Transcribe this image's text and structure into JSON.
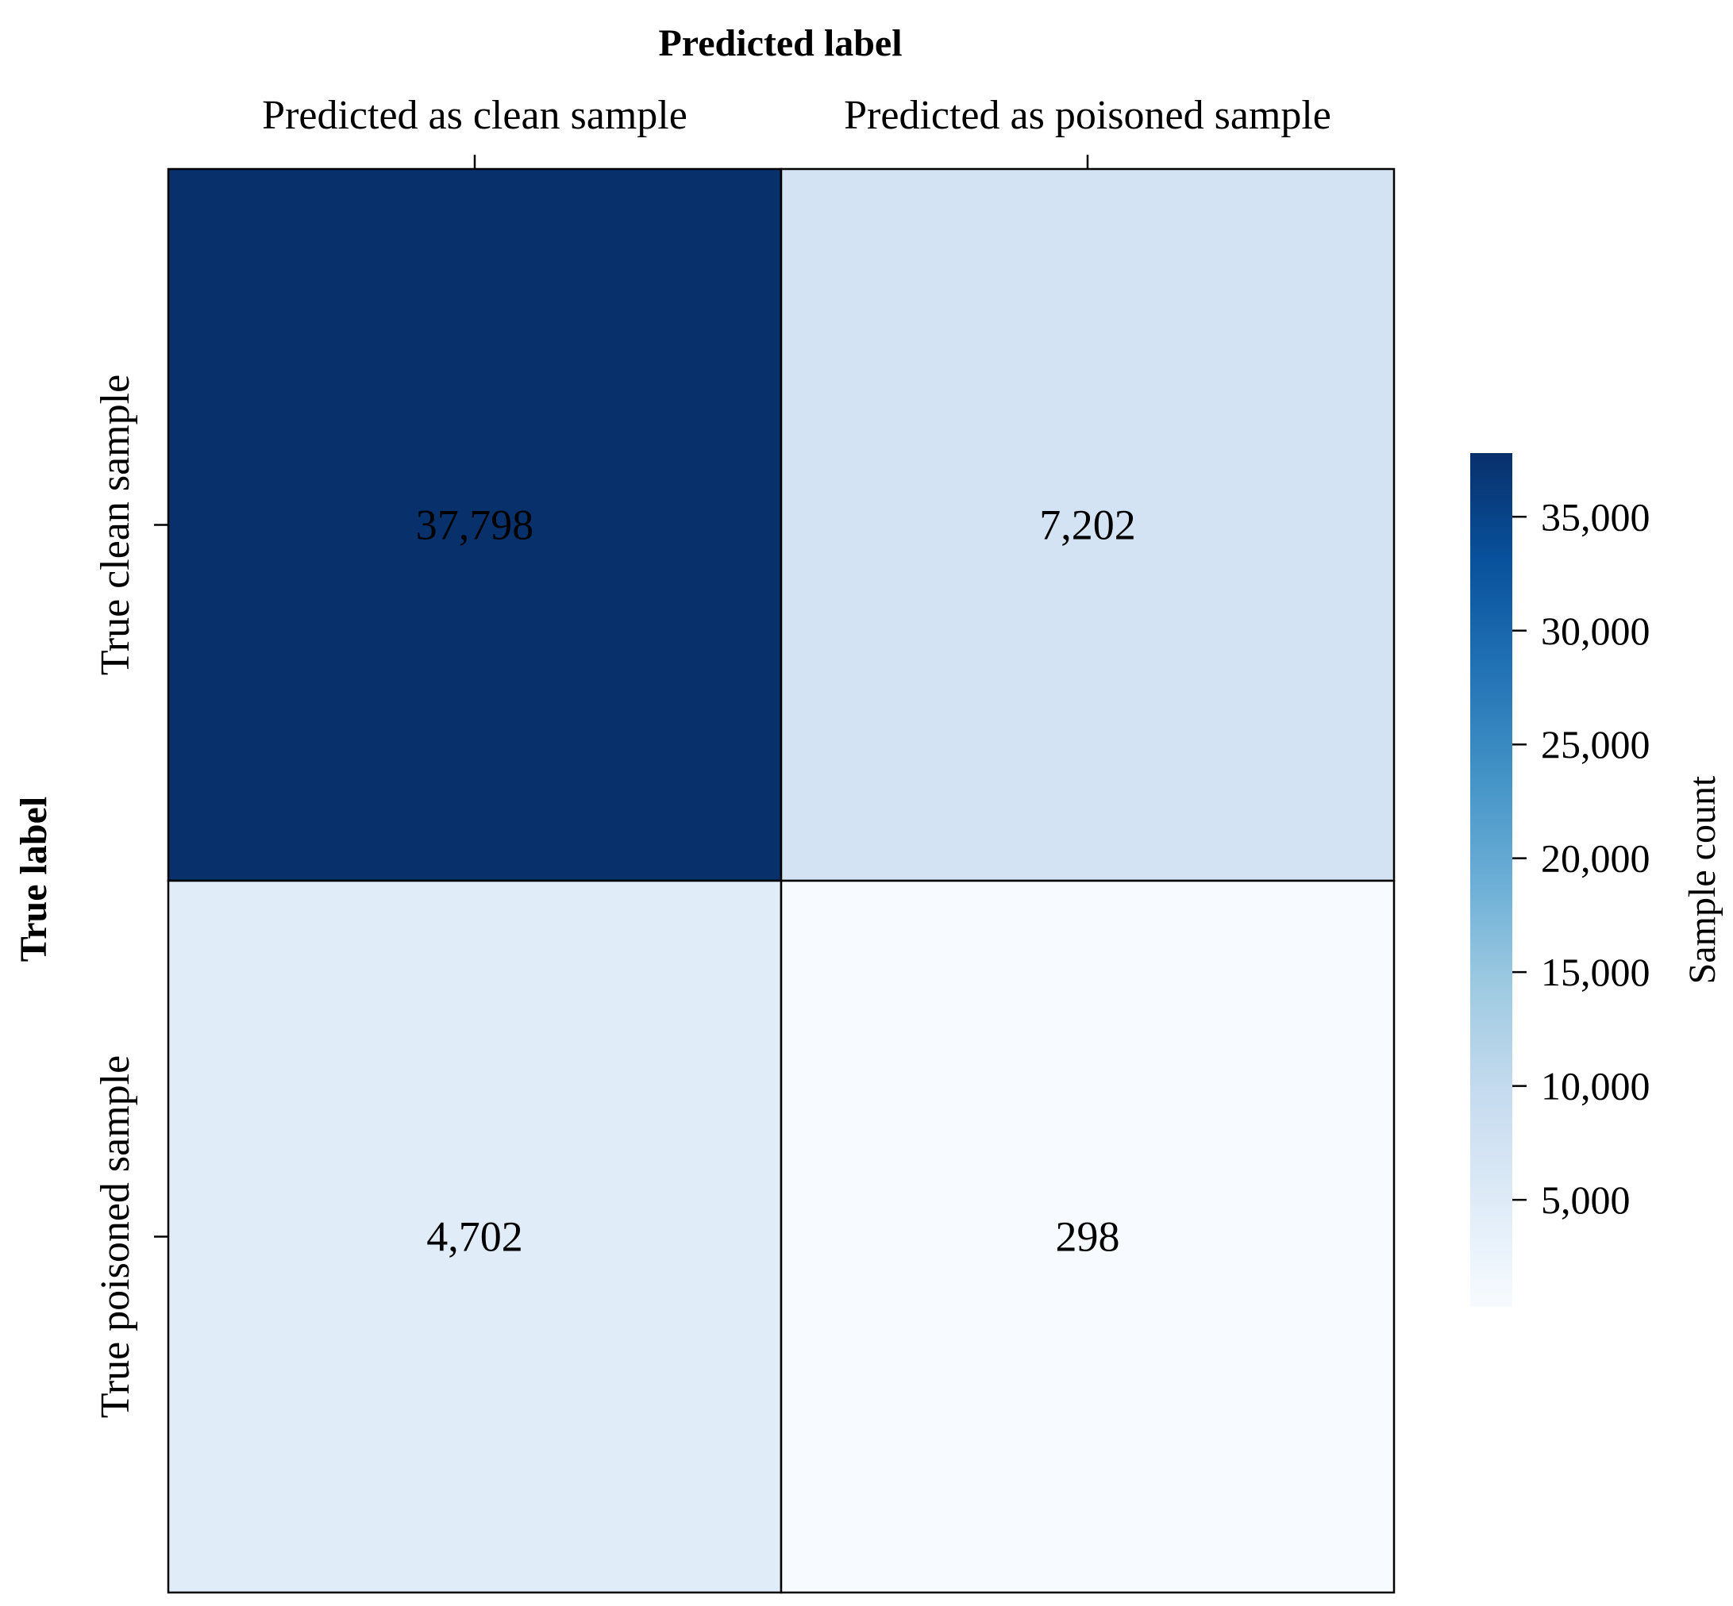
{
  "chart_data": {
    "type": "heatmap",
    "title": "",
    "xlabel": "Predicted label",
    "ylabel": "True label",
    "x_categories": [
      "Predicted as clean sample",
      "Predicted as poisoned sample"
    ],
    "y_categories": [
      "True clean sample",
      "True poisoned sample"
    ],
    "values": [
      [
        37798,
        7202
      ],
      [
        4702,
        298
      ]
    ],
    "cell_labels": [
      [
        "37,798",
        "7,202"
      ],
      [
        "4,702",
        "298"
      ]
    ],
    "colorbar": {
      "label": "Sample count",
      "colormap": "Blues",
      "range": [
        298,
        37798
      ],
      "ticks": [
        5000,
        10000,
        15000,
        20000,
        25000,
        30000,
        35000
      ],
      "tick_labels": [
        "5,000",
        "10,000",
        "15,000",
        "20,000",
        "25,000",
        "30,000",
        "35,000"
      ],
      "position": "right"
    },
    "xaxis_position": "top",
    "grid": false
  },
  "colors": {
    "low": "#f7fbff",
    "high": "#08306b",
    "cell_border": "#000000"
  }
}
